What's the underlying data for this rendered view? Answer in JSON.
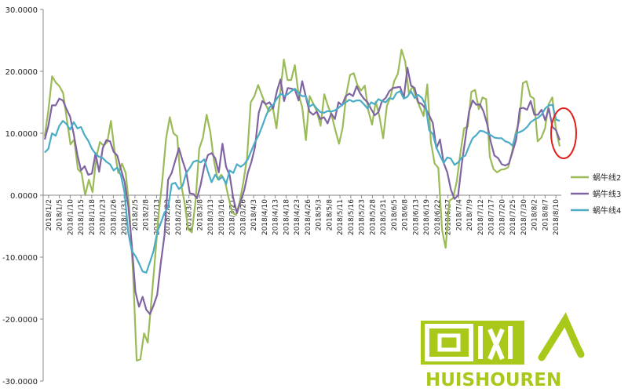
{
  "chart_data": {
    "type": "line",
    "title": "",
    "xlabel": "",
    "ylabel": "",
    "ylim": [
      -30,
      30
    ],
    "yticks": [
      30,
      20,
      10,
      0,
      -10,
      -20,
      -30
    ],
    "ytick_labels": [
      "30.0000",
      "20.0000",
      "10.0000",
      "0.0000",
      "-10.0000",
      "-20.0000",
      "-30.0000"
    ],
    "x_tick_labels": [
      "2018/1/2",
      "2018/1/5",
      "2018/1/10",
      "2018/1/15",
      "2018/1/18",
      "2018/1/23",
      "2018/1/26",
      "2018/1/31",
      "2018/2/5",
      "2018/2/8",
      "2018/2/13",
      "2018/2/23",
      "2018/2/28",
      "2018/3/5",
      "2018/3/8",
      "2018/3/13",
      "2018/3/16",
      "2018/3/21",
      "2018/3/26",
      "2018/4/3",
      "2018/4/10",
      "2018/4/13",
      "2018/4/18",
      "2018/4/23",
      "2018/4/26",
      "2018/5/3",
      "2018/5/8",
      "2018/5/11",
      "2018/5/16",
      "2018/5/23",
      "2018/5/28",
      "2018/5/31",
      "2018/6/5",
      "2018/6/8",
      "2018/6/13",
      "2018/6/19",
      "2018/6/22",
      "2018/6/27",
      "2018/7/4",
      "2018/7/9",
      "2018/7/12",
      "2018/7/17",
      "2018/7/20",
      "2018/7/25",
      "2018/7/30",
      "2018/8/2",
      "2018/8/7",
      "2018/8/10"
    ],
    "grid": false,
    "legend_position": "right",
    "series": [
      {
        "name": "蜗牛线2",
        "color": "#9bbb59",
        "values": [
          9.5,
          13.8,
          19.2,
          18.2,
          17.6,
          16.5,
          12.3,
          8.2,
          9.0,
          4.2,
          3.6,
          0.0,
          2.5,
          0.5,
          6.1,
          8.6,
          8.0,
          8.6,
          12.0,
          7.1,
          3.6,
          5.1,
          3.6,
          -2.2,
          -12.6,
          -26.7,
          -26.5,
          -22.3,
          -23.8,
          -17.0,
          -10.0,
          -2.8,
          2.6,
          9.2,
          12.6,
          10.0,
          9.5,
          2.0,
          -1.2,
          -5.5,
          -6.0,
          -1.0,
          7.5,
          9.3,
          13.0,
          10.2,
          5.6,
          2.6,
          3.3,
          2.3,
          -0.5,
          -2.8,
          -3.2,
          -1.1,
          2.1,
          6.0,
          15.0,
          16.0,
          17.8,
          16.2,
          14.7,
          13.5,
          14.2,
          10.8,
          16.4,
          21.9,
          18.6,
          18.6,
          21.0,
          16.3,
          14.2,
          8.9,
          16.0,
          14.8,
          13.5,
          11.2,
          16.3,
          14.4,
          12.9,
          10.5,
          8.3,
          10.9,
          16.3,
          19.4,
          19.7,
          17.8,
          16.9,
          17.7,
          13.6,
          11.4,
          15.1,
          12.7,
          9.2,
          14.4,
          15.9,
          18.4,
          19.6,
          23.5,
          21.6,
          16.4,
          17.6,
          15.7,
          14.2,
          12.8,
          17.9,
          8.5,
          5.1,
          4.4,
          -5.6,
          -8.5,
          -0.9,
          -0.5,
          2.2,
          6.8,
          10.8,
          11.1,
          16.7,
          17.0,
          13.9,
          15.8,
          15.5,
          6.2,
          4.2,
          3.7,
          4.1,
          4.2,
          4.5,
          6.9,
          10.0,
          12.0,
          18.1,
          18.4,
          16.0,
          15.6,
          8.7,
          9.3,
          10.8,
          14.7,
          15.8,
          10.5,
          7.9
        ]
      },
      {
        "name": "蜗牛线3",
        "color": "#8064a2",
        "values": [
          9.0,
          11.2,
          14.5,
          14.5,
          15.6,
          15.3,
          13.9,
          12.7,
          9.8,
          6.5,
          4.0,
          4.7,
          3.3,
          3.5,
          6.8,
          3.8,
          7.6,
          8.9,
          8.7,
          7.0,
          6.4,
          4.2,
          2.2,
          -1.6,
          -8.0,
          -15.6,
          -18.0,
          -16.4,
          -18.5,
          -19.2,
          -17.8,
          -16.1,
          -11.0,
          -6.5,
          2.5,
          3.6,
          5.6,
          7.6,
          5.6,
          3.8,
          0.3,
          0.2,
          -0.5,
          1.7,
          4.7,
          6.5,
          6.8,
          6.0,
          3.7,
          8.3,
          4.6,
          3.2,
          -0.5,
          -2.9,
          -1.0,
          0.8,
          3.6,
          5.4,
          7.8,
          13.3,
          15.2,
          14.7,
          15.0,
          14.0,
          16.8,
          18.7,
          15.2,
          17.3,
          17.2,
          17.0,
          15.3,
          18.4,
          15.9,
          13.5,
          13.0,
          13.5,
          12.3,
          12.6,
          11.6,
          13.2,
          12.3,
          15.0,
          14.5,
          16.0,
          16.4,
          16.0,
          17.6,
          16.4,
          15.6,
          15.0,
          13.9,
          12.9,
          13.4,
          15.2,
          15.7,
          16.8,
          17.3,
          17.4,
          17.5,
          15.7,
          20.6,
          17.7,
          17.3,
          15.0,
          14.7,
          14.0,
          12.9,
          11.7,
          7.6,
          9.0,
          5.2,
          3.7,
          0.9,
          -0.6,
          0.0,
          5.1,
          9.2,
          13.5,
          15.3,
          14.6,
          14.7,
          13.5,
          11.5,
          8.6,
          6.4,
          6.0,
          5.0,
          4.8,
          5.1,
          7.0,
          9.0,
          14.0,
          14.1,
          13.8,
          15.2,
          13.0,
          13.0,
          13.8,
          12.1,
          14.0,
          11.0,
          10.5,
          8.9
        ]
      },
      {
        "name": "蜗牛线4",
        "color": "#4bacc6",
        "values": [
          6.9,
          7.5,
          10.0,
          9.6,
          11.2,
          12.0,
          11.5,
          10.6,
          11.8,
          10.8,
          11.0,
          9.7,
          8.8,
          7.5,
          6.7,
          6.2,
          6.0,
          5.4,
          5.0,
          4.0,
          4.5,
          3.2,
          0.5,
          -6.0,
          -9.0,
          -9.8,
          -11.0,
          -12.3,
          -12.5,
          -10.8,
          -9.0,
          -6.0,
          -4.5,
          -2.8,
          -2.0,
          1.8,
          2.0,
          1.0,
          1.5,
          3.6,
          4.4,
          5.4,
          5.6,
          5.3,
          5.8,
          3.8,
          2.1,
          3.3,
          2.5,
          3.0,
          1.8,
          4.0,
          3.6,
          5.0,
          4.6,
          5.0,
          5.8,
          7.2,
          8.6,
          9.7,
          11.2,
          12.8,
          14.2,
          14.6,
          15.6,
          16.4,
          16.0,
          16.3,
          16.8,
          17.2,
          16.4,
          16.0,
          16.0,
          14.3,
          14.7,
          14.0,
          13.4,
          13.3,
          13.6,
          13.5,
          13.7,
          14.1,
          14.6,
          15.0,
          15.4,
          15.1,
          15.3,
          15.3,
          14.7,
          14.0,
          15.0,
          14.7,
          15.5,
          15.2,
          15.0,
          15.7,
          15.5,
          16.5,
          16.8,
          15.6,
          15.9,
          16.8,
          15.7,
          16.2,
          15.7,
          14.6,
          10.5,
          9.9,
          7.7,
          6.4,
          5.2,
          6.1,
          5.9,
          4.9,
          5.3,
          6.1,
          6.4,
          7.9,
          9.2,
          9.7,
          10.4,
          10.3,
          10.0,
          9.7,
          9.3,
          9.2,
          9.2,
          8.7,
          8.5,
          8.0,
          10.0,
          10.2,
          10.5,
          11.0,
          11.8,
          12.2,
          12.5,
          13.0,
          14.0,
          14.5,
          14.6,
          12.2,
          12.0
        ]
      }
    ]
  },
  "watermark": {
    "text": "HUISHOUREN",
    "color": "#a8c81a"
  },
  "annotation": {
    "shape": "circle",
    "color": "#e0201a"
  }
}
